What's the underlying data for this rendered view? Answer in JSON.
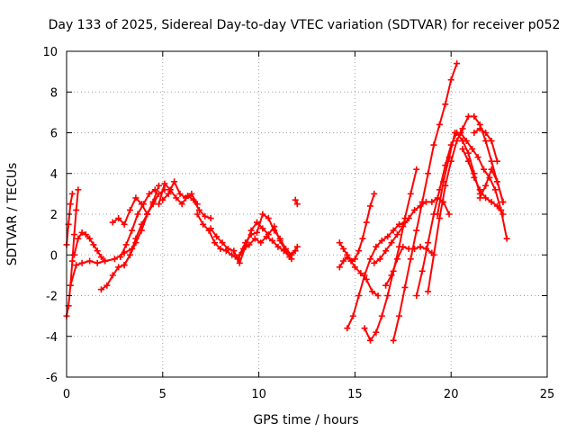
{
  "chart_data": {
    "type": "scatter",
    "title": "Day 133 of 2025, Sidereal Day-to-day VTEC variation (SDTVAR) for receiver p052",
    "xlabel": "GPS time / hours",
    "ylabel": "SDTVAR / TECUs",
    "xlim": [
      0,
      25
    ],
    "ylim": [
      -6,
      10
    ],
    "xticks": [
      "0",
      "5",
      "10",
      "15",
      "20",
      "25"
    ],
    "yticks": [
      "-6",
      "-4",
      "-2",
      "0",
      "2",
      "4",
      "6",
      "8",
      "10"
    ],
    "grid": true,
    "marker": "plus",
    "color": "#ff0000",
    "series": [
      {
        "x": [
          0.0,
          0.1,
          0.2,
          0.3,
          0.4,
          0.5,
          0.6
        ],
        "y": [
          -3.0,
          -2.5,
          -1.5,
          -0.3,
          1.0,
          2.2,
          3.2
        ]
      },
      {
        "x": [
          0.0,
          0.1,
          0.2,
          0.3
        ],
        "y": [
          0.5,
          1.5,
          2.5,
          3.0
        ]
      },
      {
        "x": [
          0.2,
          0.5,
          0.8,
          1.2,
          1.6,
          2.0,
          2.5,
          3.0,
          3.4
        ],
        "y": [
          -1.5,
          -0.5,
          -0.4,
          -0.3,
          -0.4,
          -0.3,
          -0.2,
          0.1,
          0.3
        ]
      },
      {
        "x": [
          0.4,
          0.6,
          0.8,
          1.0,
          1.2,
          1.4,
          1.6,
          1.8,
          2.0
        ],
        "y": [
          0.0,
          0.8,
          1.1,
          1.0,
          0.8,
          0.5,
          0.2,
          -0.1,
          -0.3
        ]
      },
      {
        "x": [
          1.8,
          2.1,
          2.4,
          2.7,
          3.0,
          3.3,
          3.6,
          3.9,
          4.2,
          4.5
        ],
        "y": [
          -1.7,
          -1.5,
          -1.0,
          -0.6,
          -0.5,
          0.0,
          0.6,
          1.2,
          2.0,
          2.6
        ]
      },
      {
        "x": [
          2.4,
          2.7,
          3.0,
          3.3,
          3.6,
          3.9,
          4.2,
          4.5,
          4.8
        ],
        "y": [
          1.6,
          1.8,
          1.5,
          2.2,
          2.8,
          2.5,
          2.0,
          2.6,
          3.4
        ]
      },
      {
        "x": [
          2.8,
          3.1,
          3.4,
          3.7,
          4.0,
          4.3,
          4.6
        ],
        "y": [
          -0.1,
          0.5,
          1.2,
          2.0,
          2.5,
          3.0,
          3.2
        ]
      },
      {
        "x": [
          3.0,
          3.3,
          3.6,
          3.9,
          4.2,
          4.5,
          4.8,
          5.1
        ],
        "y": [
          -0.5,
          0.0,
          0.8,
          1.5,
          2.0,
          2.5,
          3.0,
          3.2
        ]
      },
      {
        "x": [
          4.8,
          5.1,
          5.4,
          5.7,
          6.0,
          6.3,
          6.6,
          6.9,
          7.2,
          7.5
        ],
        "y": [
          2.5,
          3.5,
          3.2,
          2.8,
          2.5,
          2.9,
          2.7,
          2.2,
          1.9,
          1.8
        ]
      },
      {
        "x": [
          5.0,
          5.3,
          5.6,
          5.9,
          6.2,
          6.5,
          6.8
        ],
        "y": [
          2.7,
          3.0,
          3.6,
          3.0,
          2.8,
          3.0,
          2.5
        ]
      },
      {
        "x": [
          6.8,
          7.1,
          7.4,
          7.7,
          8.0,
          8.3,
          8.6,
          8.9,
          9.2,
          9.5,
          9.8,
          10.1,
          10.4,
          10.7,
          11.0,
          11.3,
          11.6,
          11.9
        ],
        "y": [
          2.0,
          1.5,
          1.2,
          0.6,
          0.3,
          0.2,
          0.0,
          -0.2,
          0.3,
          0.5,
          0.8,
          0.6,
          0.9,
          0.7,
          0.4,
          0.2,
          -0.1,
          0.2
        ]
      },
      {
        "x": [
          7.5,
          7.8,
          8.1,
          8.4,
          8.7,
          9.0,
          9.3,
          9.6,
          9.9,
          10.2,
          10.5,
          10.8,
          11.1,
          11.4,
          11.7
        ],
        "y": [
          1.3,
          0.9,
          0.6,
          0.3,
          0.2,
          -0.4,
          0.4,
          1.2,
          1.6,
          1.3,
          1.0,
          1.4,
          0.7,
          0.2,
          -0.2
        ]
      },
      {
        "x": [
          9.0,
          9.3,
          9.6,
          9.9,
          10.2,
          10.5,
          10.8,
          11.1,
          11.4,
          11.7,
          12.0
        ],
        "y": [
          0.0,
          0.6,
          1.0,
          1.1,
          2.0,
          1.8,
          1.2,
          0.8,
          0.3,
          0.0,
          0.4
        ]
      },
      {
        "x": [
          11.9,
          12.0
        ],
        "y": [
          2.7,
          2.5
        ]
      },
      {
        "x": [
          14.2,
          14.4,
          14.6,
          14.8,
          15.0,
          15.2,
          15.4,
          15.6,
          15.8,
          16.0
        ],
        "y": [
          0.6,
          0.3,
          0.0,
          -0.3,
          -0.2,
          0.2,
          0.8,
          1.6,
          2.4,
          3.0
        ]
      },
      {
        "x": [
          14.2,
          14.4,
          14.6,
          14.8,
          15.0,
          15.3,
          15.6,
          15.9,
          16.2
        ],
        "y": [
          -0.6,
          -0.3,
          -0.1,
          -0.3,
          -0.6,
          -0.9,
          -1.2,
          -1.8,
          -2.0
        ]
      },
      {
        "x": [
          14.6,
          14.9,
          15.2,
          15.5,
          15.8,
          16.1,
          16.4,
          16.7,
          17.0,
          17.3,
          17.6
        ],
        "y": [
          -3.6,
          -3.0,
          -2.0,
          -1.0,
          -0.2,
          0.4,
          0.7,
          0.9,
          1.2,
          1.5,
          1.6
        ]
      },
      {
        "x": [
          15.5,
          15.8,
          16.1,
          16.4,
          16.7,
          17.0,
          17.3,
          17.6,
          17.9,
          18.2
        ],
        "y": [
          -3.6,
          -4.2,
          -3.8,
          -3.0,
          -2.0,
          -0.8,
          0.4,
          1.8,
          3.0,
          4.2
        ]
      },
      {
        "x": [
          16.0,
          16.3,
          16.6,
          16.9,
          17.2,
          17.5,
          17.8,
          18.1,
          18.4,
          18.7,
          19.0,
          19.3,
          19.6,
          19.9
        ],
        "y": [
          -0.4,
          -0.2,
          0.2,
          0.6,
          1.0,
          1.4,
          1.8,
          2.2,
          2.4,
          2.6,
          2.6,
          2.8,
          2.6,
          2.0
        ]
      },
      {
        "x": [
          16.6,
          16.9,
          17.2,
          17.5,
          17.8,
          18.1,
          18.4,
          18.7,
          19.0
        ],
        "y": [
          -1.5,
          -1.0,
          -0.2,
          0.4,
          0.3,
          0.3,
          0.4,
          0.3,
          0.1
        ]
      },
      {
        "x": [
          17.0,
          17.3,
          17.6,
          17.9,
          18.2,
          18.5,
          18.8,
          19.1,
          19.4,
          19.7,
          20.0,
          20.3
        ],
        "y": [
          -4.2,
          -3.0,
          -1.6,
          -0.2,
          1.2,
          2.6,
          4.0,
          5.4,
          6.4,
          7.4,
          8.6,
          9.4
        ]
      },
      {
        "x": [
          18.2,
          18.5,
          18.8,
          19.1,
          19.4,
          19.7,
          20.0,
          20.3,
          20.6,
          20.9,
          21.2,
          21.5
        ],
        "y": [
          -2.0,
          -0.8,
          0.6,
          2.0,
          3.2,
          4.4,
          5.4,
          6.0,
          5.6,
          5.0,
          4.0,
          3.0
        ]
      },
      {
        "x": [
          18.8,
          19.1,
          19.4,
          19.7,
          20.0,
          20.3,
          20.6,
          20.9,
          21.2,
          21.5,
          21.8,
          22.1,
          22.4,
          22.7
        ],
        "y": [
          -1.8,
          0.0,
          1.8,
          3.4,
          4.6,
          5.6,
          6.2,
          6.8,
          6.8,
          6.4,
          5.6,
          4.6,
          3.6,
          2.6
        ]
      },
      {
        "x": [
          19.3,
          19.6,
          19.9,
          20.2,
          20.5,
          20.8,
          21.1,
          21.4,
          21.7,
          22.0,
          22.3,
          22.6,
          22.9
        ],
        "y": [
          2.0,
          3.6,
          4.8,
          6.0,
          6.0,
          5.6,
          5.2,
          4.8,
          4.2,
          3.8,
          3.2,
          2.2,
          0.8
        ]
      },
      {
        "x": [
          20.6,
          20.9,
          21.2,
          21.5,
          21.8,
          22.1,
          22.4,
          22.7
        ],
        "y": [
          5.2,
          4.6,
          3.8,
          3.2,
          2.8,
          2.6,
          2.4,
          2.0
        ]
      },
      {
        "x": [
          21.2,
          21.5,
          21.8,
          22.1,
          22.4
        ],
        "y": [
          6.0,
          6.2,
          6.0,
          5.6,
          4.6
        ]
      },
      {
        "x": [
          21.5,
          21.8,
          22.1,
          22.4,
          22.7
        ],
        "y": [
          2.8,
          3.4,
          4.2,
          3.6,
          2.6
        ]
      }
    ]
  }
}
